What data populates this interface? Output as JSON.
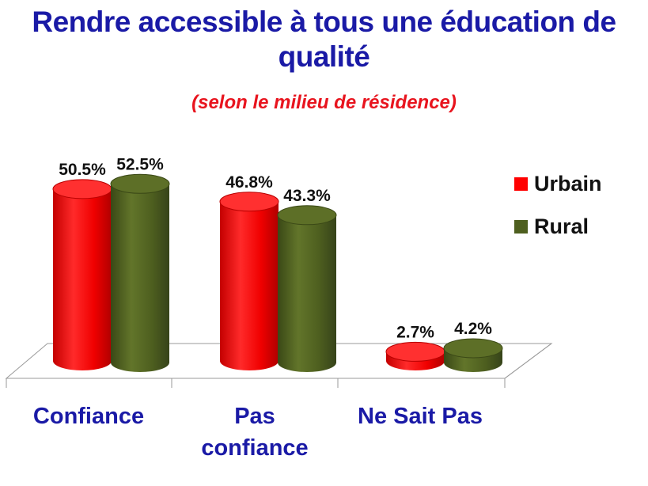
{
  "title_line1": "Rendre accessible à tous une éducation de",
  "title_line2": "qualité",
  "subtitle": "(selon le milieu de résidence)",
  "colors": {
    "title": "#1a1aa6",
    "subtitle": "#e8141e",
    "category_labels": "#1a1aa6",
    "urbain": "#ff0000",
    "rural": "#4e5f1f"
  },
  "chart_data": {
    "type": "bar",
    "style": "3d-cylinder",
    "categories": [
      [
        "Confiance"
      ],
      [
        "Pas",
        "confiance"
      ],
      [
        "Ne Sait Pas"
      ]
    ],
    "series": [
      {
        "name": "Urbain",
        "values": [
          50.5,
          46.8,
          2.7
        ],
        "labels": [
          "50.5%",
          "46.8%",
          "2.7%"
        ]
      },
      {
        "name": "Rural",
        "values": [
          52.5,
          43.3,
          4.2
        ],
        "labels": [
          "52.5%",
          "43.3%",
          "4.2%"
        ]
      }
    ],
    "ylim": [
      0,
      60
    ],
    "grid": false,
    "legend": "right"
  }
}
